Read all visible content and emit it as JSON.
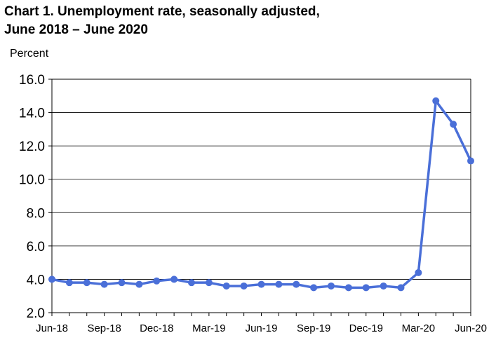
{
  "chart_data": {
    "type": "line",
    "title_line1": "Chart 1. Unemployment rate, seasonally adjusted,",
    "title_line2": "June 2018 – June 2020",
    "ylabel": "Percent",
    "xlabel": "",
    "ylim": [
      2.0,
      16.0
    ],
    "yticks": [
      "2.0",
      "4.0",
      "6.0",
      "8.0",
      "10.0",
      "12.0",
      "14.0",
      "16.0"
    ],
    "grid": true,
    "line_color": "#4a6fd8",
    "categories": [
      "Jun-18",
      "Jul-18",
      "Aug-18",
      "Sep-18",
      "Oct-18",
      "Nov-18",
      "Dec-18",
      "Jan-19",
      "Feb-19",
      "Mar-19",
      "Apr-19",
      "May-19",
      "Jun-19",
      "Jul-19",
      "Aug-19",
      "Sep-19",
      "Oct-19",
      "Nov-19",
      "Dec-19",
      "Jan-20",
      "Feb-20",
      "Mar-20",
      "Apr-20",
      "May-20",
      "Jun-20"
    ],
    "xtick_labels": [
      "Jun-18",
      "Sep-18",
      "Dec-18",
      "Mar-19",
      "Jun-19",
      "Sep-19",
      "Dec-19",
      "Mar-20",
      "Jun-20"
    ],
    "values": [
      4.0,
      3.8,
      3.8,
      3.7,
      3.8,
      3.7,
      3.9,
      4.0,
      3.8,
      3.8,
      3.6,
      3.6,
      3.7,
      3.7,
      3.7,
      3.5,
      3.6,
      3.5,
      3.5,
      3.6,
      3.5,
      4.4,
      14.7,
      13.3,
      11.1
    ]
  }
}
